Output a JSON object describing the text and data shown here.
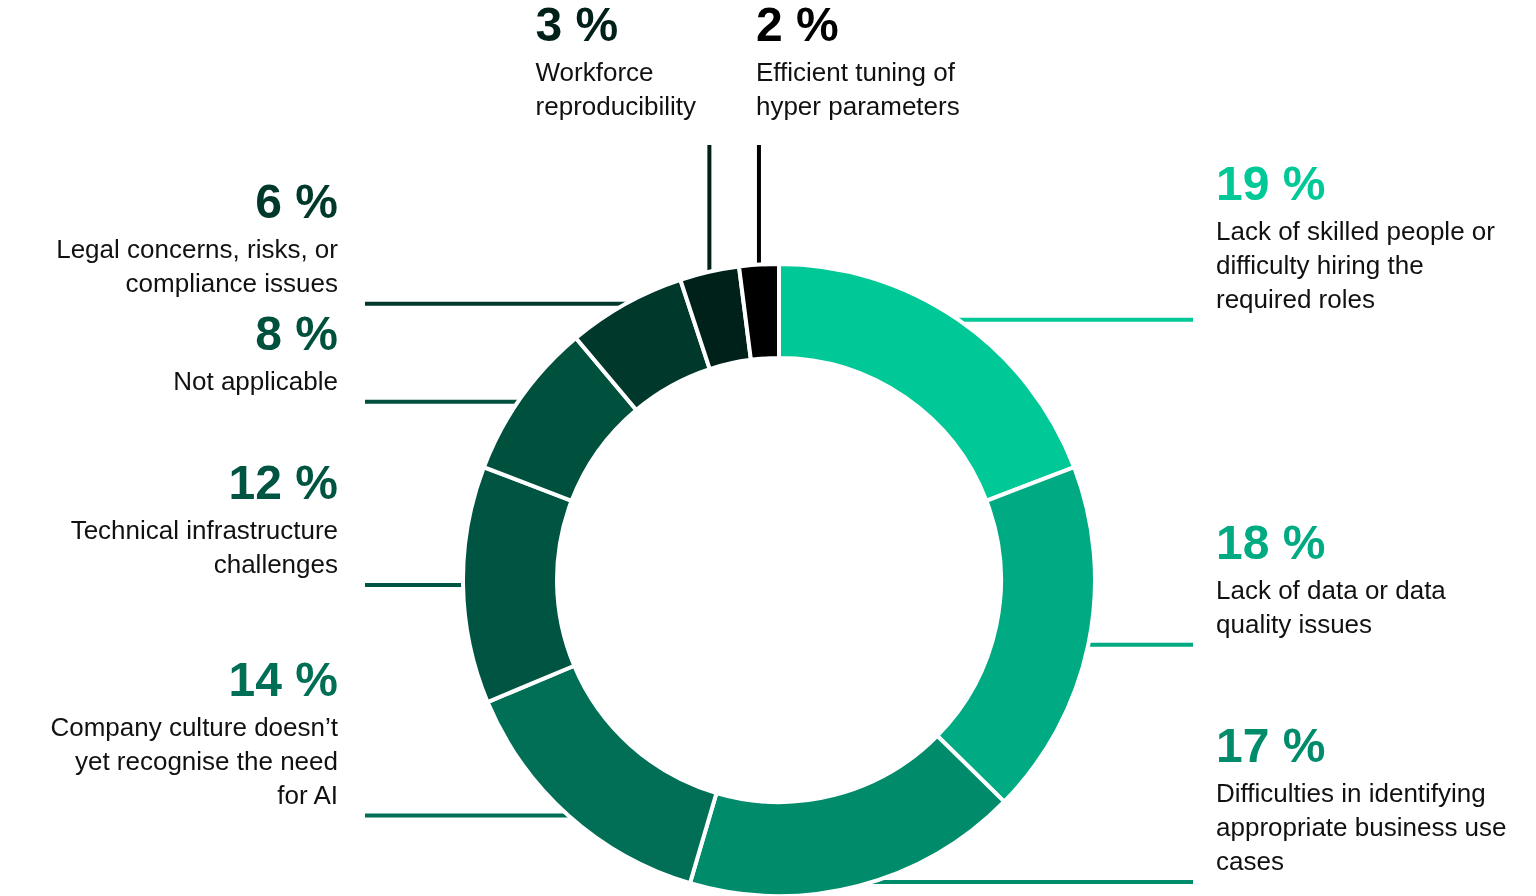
{
  "chart_data": {
    "type": "donut",
    "categories": [
      "Lack of skilled people or difficulty hiring the required roles",
      "Lack of data or data quality issues",
      "Difficulties in identifying appropriate business use cases",
      "Company culture doesn’t yet recognise the need for AI",
      "Technical infrastructure challenges",
      "Not applicable",
      "Legal concerns, risks, or compliance issues",
      "Workforce reproducibility",
      "Efficient tuning of hyper parameters"
    ],
    "values": [
      19,
      18,
      17,
      14,
      12,
      8,
      6,
      3,
      2
    ],
    "value_labels": [
      "19 %",
      "18 %",
      "17 %",
      "14 %",
      "12 %",
      "8 %",
      "6 %",
      "3 %",
      "2 %"
    ],
    "colors": [
      "#00c896",
      "#00aa82",
      "#008c6a",
      "#006f55",
      "#005542",
      "#00503e",
      "#00382b",
      "#00201a",
      "#000000"
    ]
  }
}
